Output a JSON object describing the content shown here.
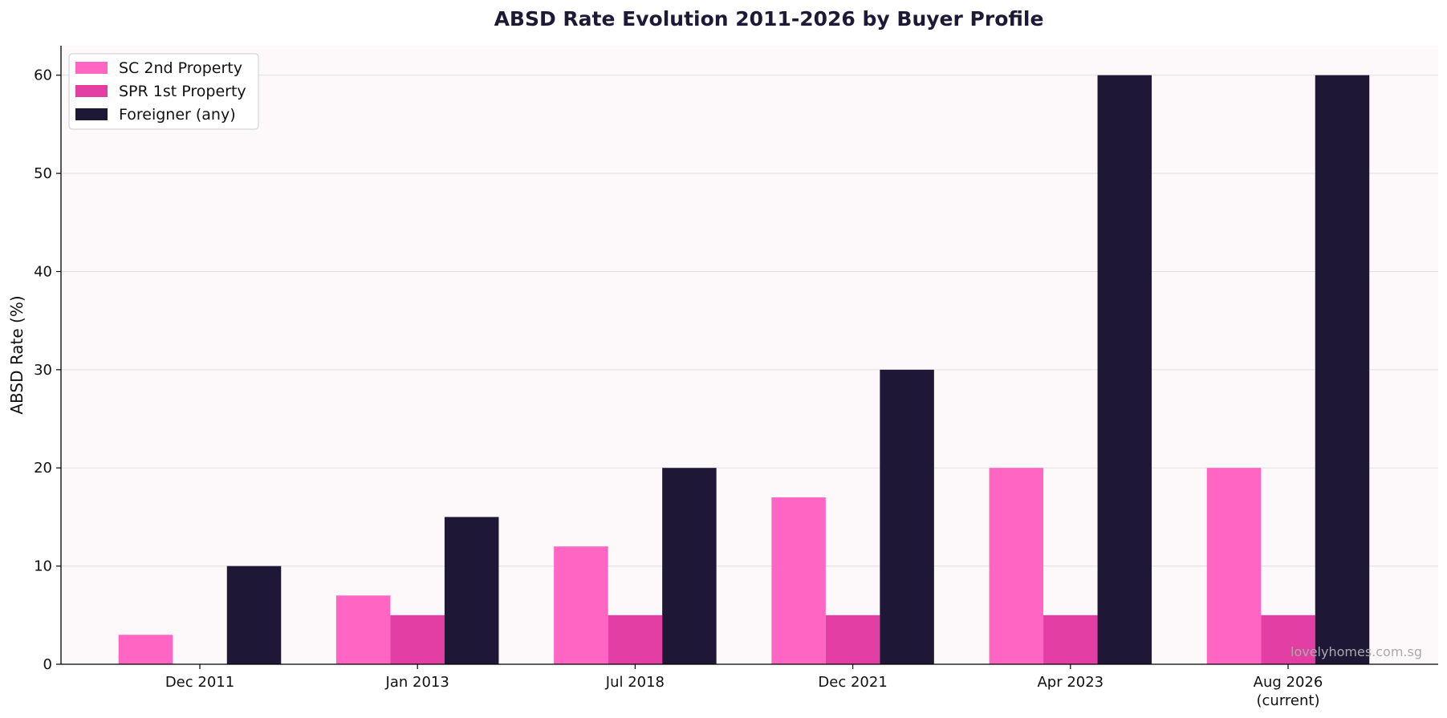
{
  "chart_data": {
    "type": "bar",
    "title": "ABSD Rate Evolution 2011-2026 by Buyer Profile",
    "xlabel": "",
    "ylabel": "ABSD Rate (%)",
    "ylim": [
      0,
      63
    ],
    "yticks": [
      0,
      10,
      20,
      30,
      40,
      50,
      60
    ],
    "grid": true,
    "legend_position": "top-left",
    "categories": [
      [
        "Dec 2011"
      ],
      [
        "Jan 2013"
      ],
      [
        "Jul 2018"
      ],
      [
        "Dec 2021"
      ],
      [
        "Apr 2023"
      ],
      [
        "Aug 2026",
        "(current)"
      ]
    ],
    "series": [
      {
        "name": "SC 2nd Property",
        "color": "#ff66c4",
        "values": [
          3,
          7,
          12,
          17,
          20,
          20
        ]
      },
      {
        "name": "SPR 1st Property",
        "color": "#e23ea4",
        "values": [
          0,
          5,
          5,
          5,
          5,
          5
        ]
      },
      {
        "name": "Foreigner (any)",
        "color": "#1e1836",
        "values": [
          10,
          15,
          20,
          30,
          60,
          60
        ]
      }
    ],
    "watermark": "lovelyhomes.com.sg",
    "colors": {
      "plot_background": "#fdf8fa",
      "title": "#1e1a36",
      "grid": "#e6dde1"
    }
  }
}
